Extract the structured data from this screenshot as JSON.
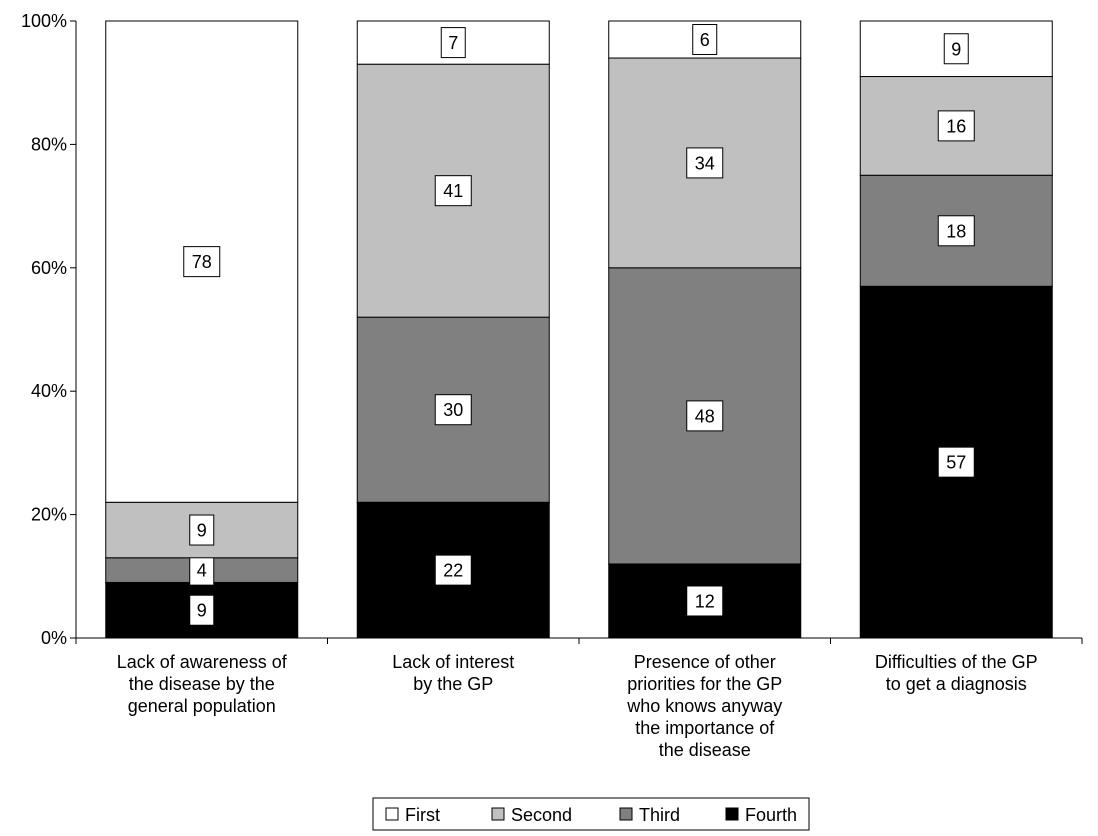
{
  "chart_data": {
    "type": "bar",
    "stacked": true,
    "percent": true,
    "title": "",
    "xlabel": "",
    "ylabel": "",
    "ylim": [
      0,
      100
    ],
    "yticks": [
      "0%",
      "20%",
      "40%",
      "60%",
      "80%",
      "100%"
    ],
    "ytick_values": [
      0,
      20,
      40,
      60,
      80,
      100
    ],
    "grid": false,
    "legend_position": "bottom",
    "categories": [
      [
        "Lack of awareness of",
        "the disease by the",
        "general population"
      ],
      [
        "Lack of interest",
        "by the GP"
      ],
      [
        "Presence of other",
        "priorities for the GP",
        "who knows anyway",
        "the importance of",
        "the disease"
      ],
      [
        "Difficulties of the GP",
        "to get a diagnosis"
      ]
    ],
    "series": [
      {
        "name": "Fourth",
        "color": "#000000",
        "values": [
          9,
          22,
          12,
          57
        ]
      },
      {
        "name": "Third",
        "color": "#808080",
        "values": [
          4,
          30,
          48,
          18
        ]
      },
      {
        "name": "Second",
        "color": "#c0c0c0",
        "values": [
          9,
          41,
          34,
          16
        ]
      },
      {
        "name": "First",
        "color": "#ffffff",
        "values": [
          78,
          7,
          6,
          9
        ]
      }
    ],
    "legend_order": [
      "First",
      "Second",
      "Third",
      "Fourth"
    ]
  }
}
